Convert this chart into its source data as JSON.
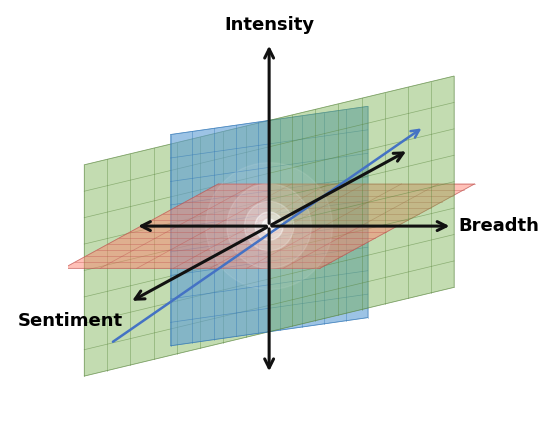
{
  "blue_plane": {
    "color": "#5B9BD5",
    "alpha": 0.6,
    "grid_color": "#2E75B6",
    "grid_alpha": 0.55,
    "n_grid": 9
  },
  "green_plane": {
    "color": "#70AD47",
    "alpha": 0.42,
    "grid_color": "#538135",
    "grid_alpha": 0.5,
    "n_grid": 8
  },
  "red_plane": {
    "color": "#FF7F6B",
    "alpha": 0.48,
    "grid_color": "#C0504D",
    "grid_alpha": 0.5,
    "n_grid": 7
  },
  "arrow_color": "#111111",
  "arrow_lw": 2.2,
  "arrow_ms": 16,
  "diag_arrow_color": "#4472C4",
  "diag_arrow_lw": 1.8,
  "label_fontsize": 13,
  "label_fontweight": "bold",
  "background_color": "#ffffff",
  "axes": {
    "intensity_label": "Intensity",
    "breadth_label": "Breadth",
    "sentiment_label": "Sentiment"
  }
}
